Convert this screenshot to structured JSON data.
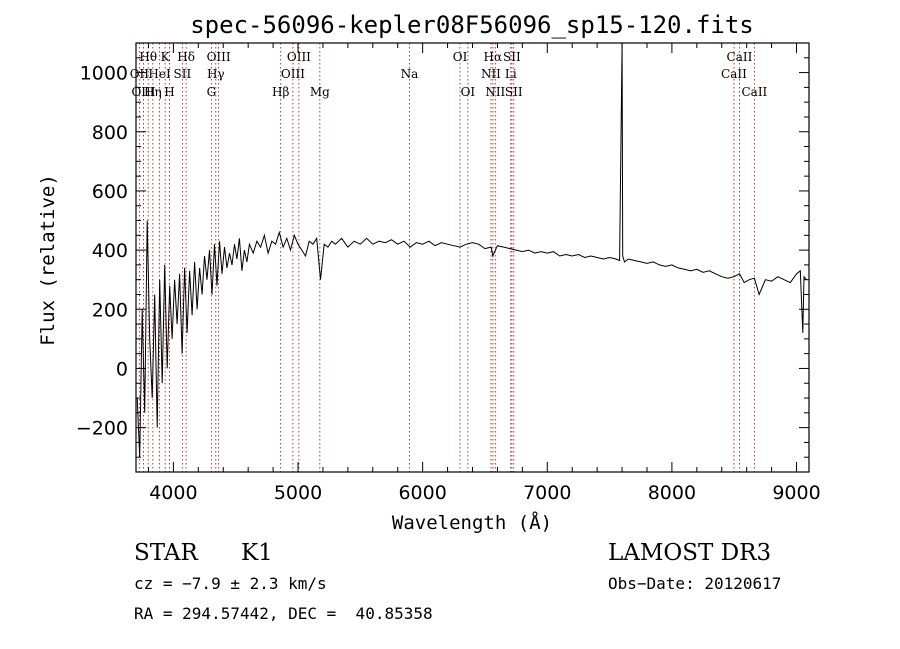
{
  "chart_data": {
    "type": "line",
    "title": "spec-56096-kepler08F56096_sp15-120.fits",
    "xlabel": "Wavelength (Å)",
    "ylabel": "Flux (relative)",
    "xlim": [
      3700,
      9100
    ],
    "ylim": [
      -350,
      1100
    ],
    "xticks": [
      4000,
      5000,
      6000,
      7000,
      8000,
      9000
    ],
    "xtick_labels": [
      "4000",
      "5000",
      "6000",
      "7000",
      "8000",
      "9000"
    ],
    "yticks": [
      -200,
      0,
      200,
      400,
      600,
      800,
      1000
    ],
    "ytick_labels": [
      "−200",
      "0",
      "200",
      "400",
      "600",
      "800",
      "1000"
    ],
    "x_minor_step": 200,
    "y_minor_step": 50,
    "line_color": "#000000",
    "marker_color": "#b22222",
    "series": [
      {
        "name": "flux",
        "x": [
          3710,
          3730,
          3750,
          3770,
          3790,
          3810,
          3830,
          3850,
          3870,
          3890,
          3910,
          3930,
          3950,
          3970,
          3990,
          4010,
          4030,
          4050,
          4070,
          4090,
          4110,
          4130,
          4150,
          4170,
          4190,
          4210,
          4230,
          4250,
          4270,
          4290,
          4310,
          4330,
          4350,
          4370,
          4390,
          4410,
          4430,
          4450,
          4470,
          4490,
          4510,
          4530,
          4550,
          4570,
          4590,
          4610,
          4640,
          4670,
          4700,
          4730,
          4760,
          4790,
          4820,
          4850,
          4880,
          4910,
          4940,
          4970,
          5000,
          5030,
          5060,
          5090,
          5120,
          5150,
          5180,
          5210,
          5240,
          5270,
          5300,
          5350,
          5400,
          5450,
          5500,
          5550,
          5600,
          5650,
          5700,
          5750,
          5800,
          5850,
          5900,
          5950,
          6000,
          6050,
          6100,
          6150,
          6200,
          6250,
          6300,
          6350,
          6400,
          6450,
          6500,
          6550,
          6563,
          6600,
          6650,
          6700,
          6750,
          6800,
          6850,
          6900,
          6950,
          7000,
          7050,
          7100,
          7150,
          7200,
          7250,
          7300,
          7350,
          7400,
          7450,
          7500,
          7550,
          7580,
          7595,
          7600,
          7605,
          7620,
          7650,
          7700,
          7750,
          7800,
          7850,
          7900,
          7950,
          8000,
          8050,
          8100,
          8150,
          8200,
          8250,
          8300,
          8350,
          8400,
          8450,
          8498,
          8542,
          8580,
          8620,
          8662,
          8700,
          8750,
          8800,
          8850,
          8900,
          8950,
          9000,
          9030,
          9050,
          9060,
          9080
        ],
        "y": [
          -100,
          -300,
          200,
          -150,
          500,
          100,
          -100,
          250,
          -200,
          300,
          -50,
          350,
          0,
          280,
          100,
          300,
          150,
          320,
          50,
          340,
          120,
          330,
          180,
          360,
          200,
          340,
          250,
          380,
          300,
          400,
          250,
          420,
          280,
          430,
          320,
          410,
          340,
          390,
          350,
          420,
          370,
          440,
          330,
          400,
          360,
          420,
          390,
          430,
          410,
          450,
          390,
          430,
          420,
          460,
          410,
          440,
          400,
          450,
          420,
          400,
          380,
          430,
          420,
          440,
          300,
          420,
          410,
          430,
          420,
          440,
          410,
          430,
          420,
          440,
          420,
          430,
          425,
          435,
          420,
          430,
          410,
          425,
          420,
          430,
          415,
          425,
          420,
          415,
          410,
          420,
          425,
          420,
          405,
          410,
          380,
          415,
          410,
          405,
          400,
          395,
          400,
          390,
          395,
          390,
          395,
          380,
          385,
          380,
          385,
          375,
          380,
          375,
          370,
          375,
          370,
          365,
          900,
          1100,
          380,
          360,
          370,
          365,
          360,
          355,
          360,
          350,
          345,
          350,
          340,
          335,
          330,
          335,
          325,
          330,
          320,
          310,
          305,
          310,
          320,
          290,
          300,
          305,
          250,
          300,
          295,
          310,
          300,
          290,
          320,
          330,
          120,
          310,
          300
        ]
      }
    ],
    "lines": [
      {
        "label": "Hθ",
        "wavelength": 3798,
        "row": 1
      },
      {
        "label": "OII",
        "wavelength": 3727,
        "row": 2
      },
      {
        "label": "OIII",
        "wavelength": 3760,
        "row": 3
      },
      {
        "label": "Hη",
        "wavelength": 3835,
        "row": 3
      },
      {
        "label": "HeI",
        "wavelength": 3889,
        "row": 2
      },
      {
        "label": "K",
        "wavelength": 3934,
        "row": 1
      },
      {
        "label": "H",
        "wavelength": 3969,
        "row": 3
      },
      {
        "label": "SII",
        "wavelength": 4072,
        "row": 2
      },
      {
        "label": "Hδ",
        "wavelength": 4102,
        "row": 1
      },
      {
        "label": "G",
        "wavelength": 4305,
        "row": 3
      },
      {
        "label": "Hγ",
        "wavelength": 4340,
        "row": 2
      },
      {
        "label": "OIII",
        "wavelength": 4363,
        "row": 1
      },
      {
        "label": "Hβ",
        "wavelength": 4861,
        "row": 3
      },
      {
        "label": "OIII",
        "wavelength": 4959,
        "row": 2
      },
      {
        "label": "OIII",
        "wavelength": 5007,
        "row": 1
      },
      {
        "label": "Mg",
        "wavelength": 5175,
        "row": 3
      },
      {
        "label": "Na",
        "wavelength": 5894,
        "row": 2
      },
      {
        "label": "OI",
        "wavelength": 6300,
        "row": 1
      },
      {
        "label": "OI",
        "wavelength": 6363,
        "row": 3
      },
      {
        "label": "NII",
        "wavelength": 6548,
        "row": 2
      },
      {
        "label": "Hα",
        "wavelength": 6563,
        "row": 1
      },
      {
        "label": "NII",
        "wavelength": 6583,
        "row": 3
      },
      {
        "label": "Li",
        "wavelength": 6707,
        "row": 2
      },
      {
        "label": "SII",
        "wavelength": 6716,
        "row": 1
      },
      {
        "label": "SII",
        "wavelength": 6731,
        "row": 3
      },
      {
        "label": "CaII",
        "wavelength": 8498,
        "row": 2
      },
      {
        "label": "CaII",
        "wavelength": 8542,
        "row": 1
      },
      {
        "label": "CaII",
        "wavelength": 8662,
        "row": 3
      }
    ]
  },
  "info": {
    "object_class": "STAR",
    "subclass": "K1",
    "survey": "LAMOST DR3",
    "cz": "cz = −7.9 ± 2.3 km/s",
    "obs_date": "Obs−Date: 20120617",
    "coords": "RA = 294.57442, DEC =  40.85358"
  }
}
